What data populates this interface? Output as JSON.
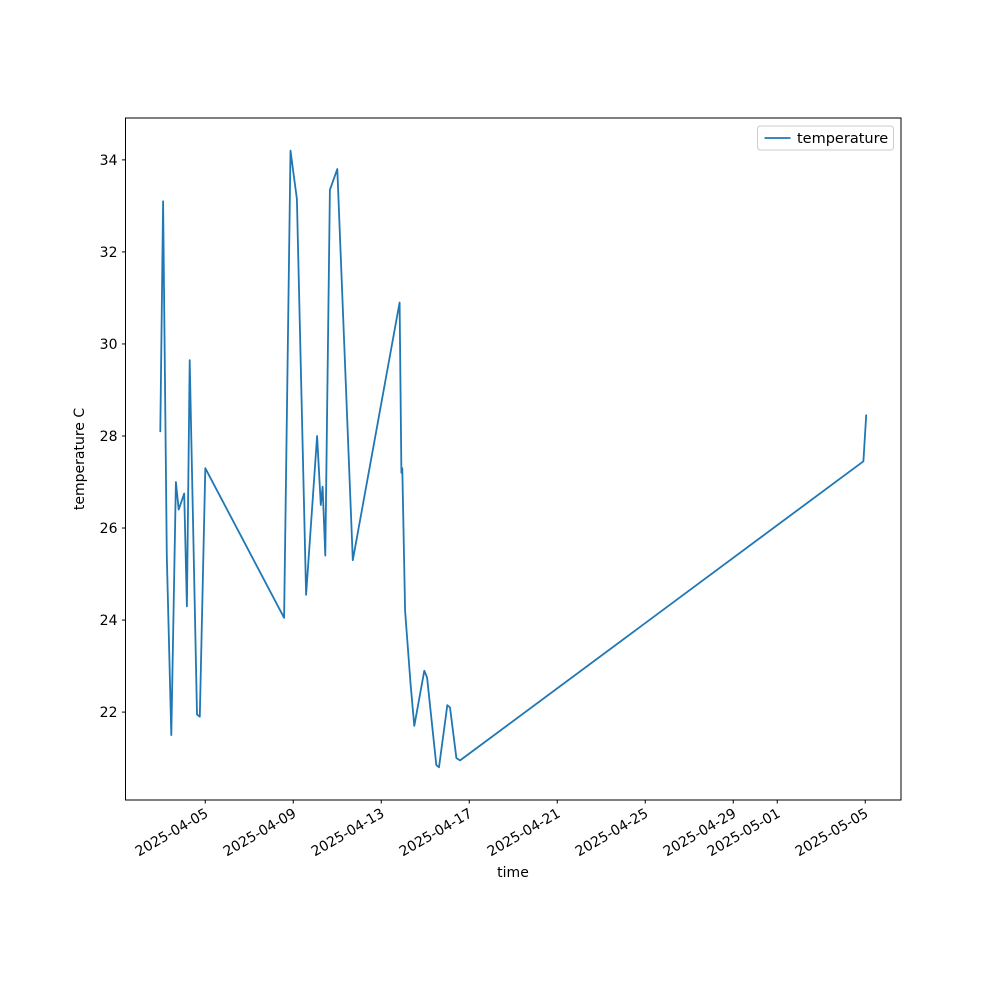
{
  "chart_data": {
    "type": "line",
    "title": "",
    "xlabel": "time",
    "ylabel": "temperature C",
    "legend": {
      "entries": [
        "temperature"
      ],
      "position": "upper right"
    },
    "line_color": "#1f77b4",
    "grid": false,
    "xlim": [
      "2025-04-01T09:00",
      "2025-05-06T15:00"
    ],
    "ylim": [
      20.09,
      34.91
    ],
    "y_ticks": [
      22,
      24,
      26,
      28,
      30,
      32,
      34
    ],
    "x_ticks": [
      "2025-04-05",
      "2025-04-09",
      "2025-04-13",
      "2025-04-17",
      "2025-04-21",
      "2025-04-25",
      "2025-04-29",
      "2025-05-01",
      "2025-05-05"
    ],
    "series": [
      {
        "name": "temperature",
        "points": [
          [
            "2025-04-02T23:00",
            28.1
          ],
          [
            "2025-04-03T02:00",
            33.1
          ],
          [
            "2025-04-03T06:00",
            25.4
          ],
          [
            "2025-04-03T11:00",
            21.5
          ],
          [
            "2025-04-03T16:00",
            27.0
          ],
          [
            "2025-04-03T19:00",
            26.4
          ],
          [
            "2025-04-04T01:00",
            26.75
          ],
          [
            "2025-04-04T04:00",
            24.3
          ],
          [
            "2025-04-04T07:00",
            29.65
          ],
          [
            "2025-04-04T15:00",
            21.95
          ],
          [
            "2025-04-04T18:00",
            21.9
          ],
          [
            "2025-04-05T00:00",
            27.3
          ],
          [
            "2025-04-08T14:00",
            24.05
          ],
          [
            "2025-04-08T21:00",
            34.2
          ],
          [
            "2025-04-09T04:00",
            33.15
          ],
          [
            "2025-04-09T14:00",
            24.55
          ],
          [
            "2025-04-10T02:00",
            28.0
          ],
          [
            "2025-04-10T06:00",
            26.5
          ],
          [
            "2025-04-10T08:00",
            26.9
          ],
          [
            "2025-04-10T11:00",
            25.4
          ],
          [
            "2025-04-10T16:00",
            33.35
          ],
          [
            "2025-04-11T00:00",
            33.8
          ],
          [
            "2025-04-11T17:00",
            25.3
          ],
          [
            "2025-04-13T20:00",
            30.9
          ],
          [
            "2025-04-13T22:00",
            27.2
          ],
          [
            "2025-04-13T23:00",
            27.3
          ],
          [
            "2025-04-14T02:00",
            24.2
          ],
          [
            "2025-04-14T08:00",
            22.6
          ],
          [
            "2025-04-14T12:00",
            21.7
          ],
          [
            "2025-04-14T23:00",
            22.9
          ],
          [
            "2025-04-15T02:00",
            22.75
          ],
          [
            "2025-04-15T12:00",
            20.85
          ],
          [
            "2025-04-15T15:00",
            20.8
          ],
          [
            "2025-04-16T00:00",
            22.15
          ],
          [
            "2025-04-16T03:00",
            22.1
          ],
          [
            "2025-04-16T10:00",
            21.0
          ],
          [
            "2025-04-16T14:00",
            20.95
          ],
          [
            "2025-05-04T22:00",
            27.45
          ],
          [
            "2025-05-05T01:00",
            28.45
          ]
        ]
      }
    ]
  }
}
